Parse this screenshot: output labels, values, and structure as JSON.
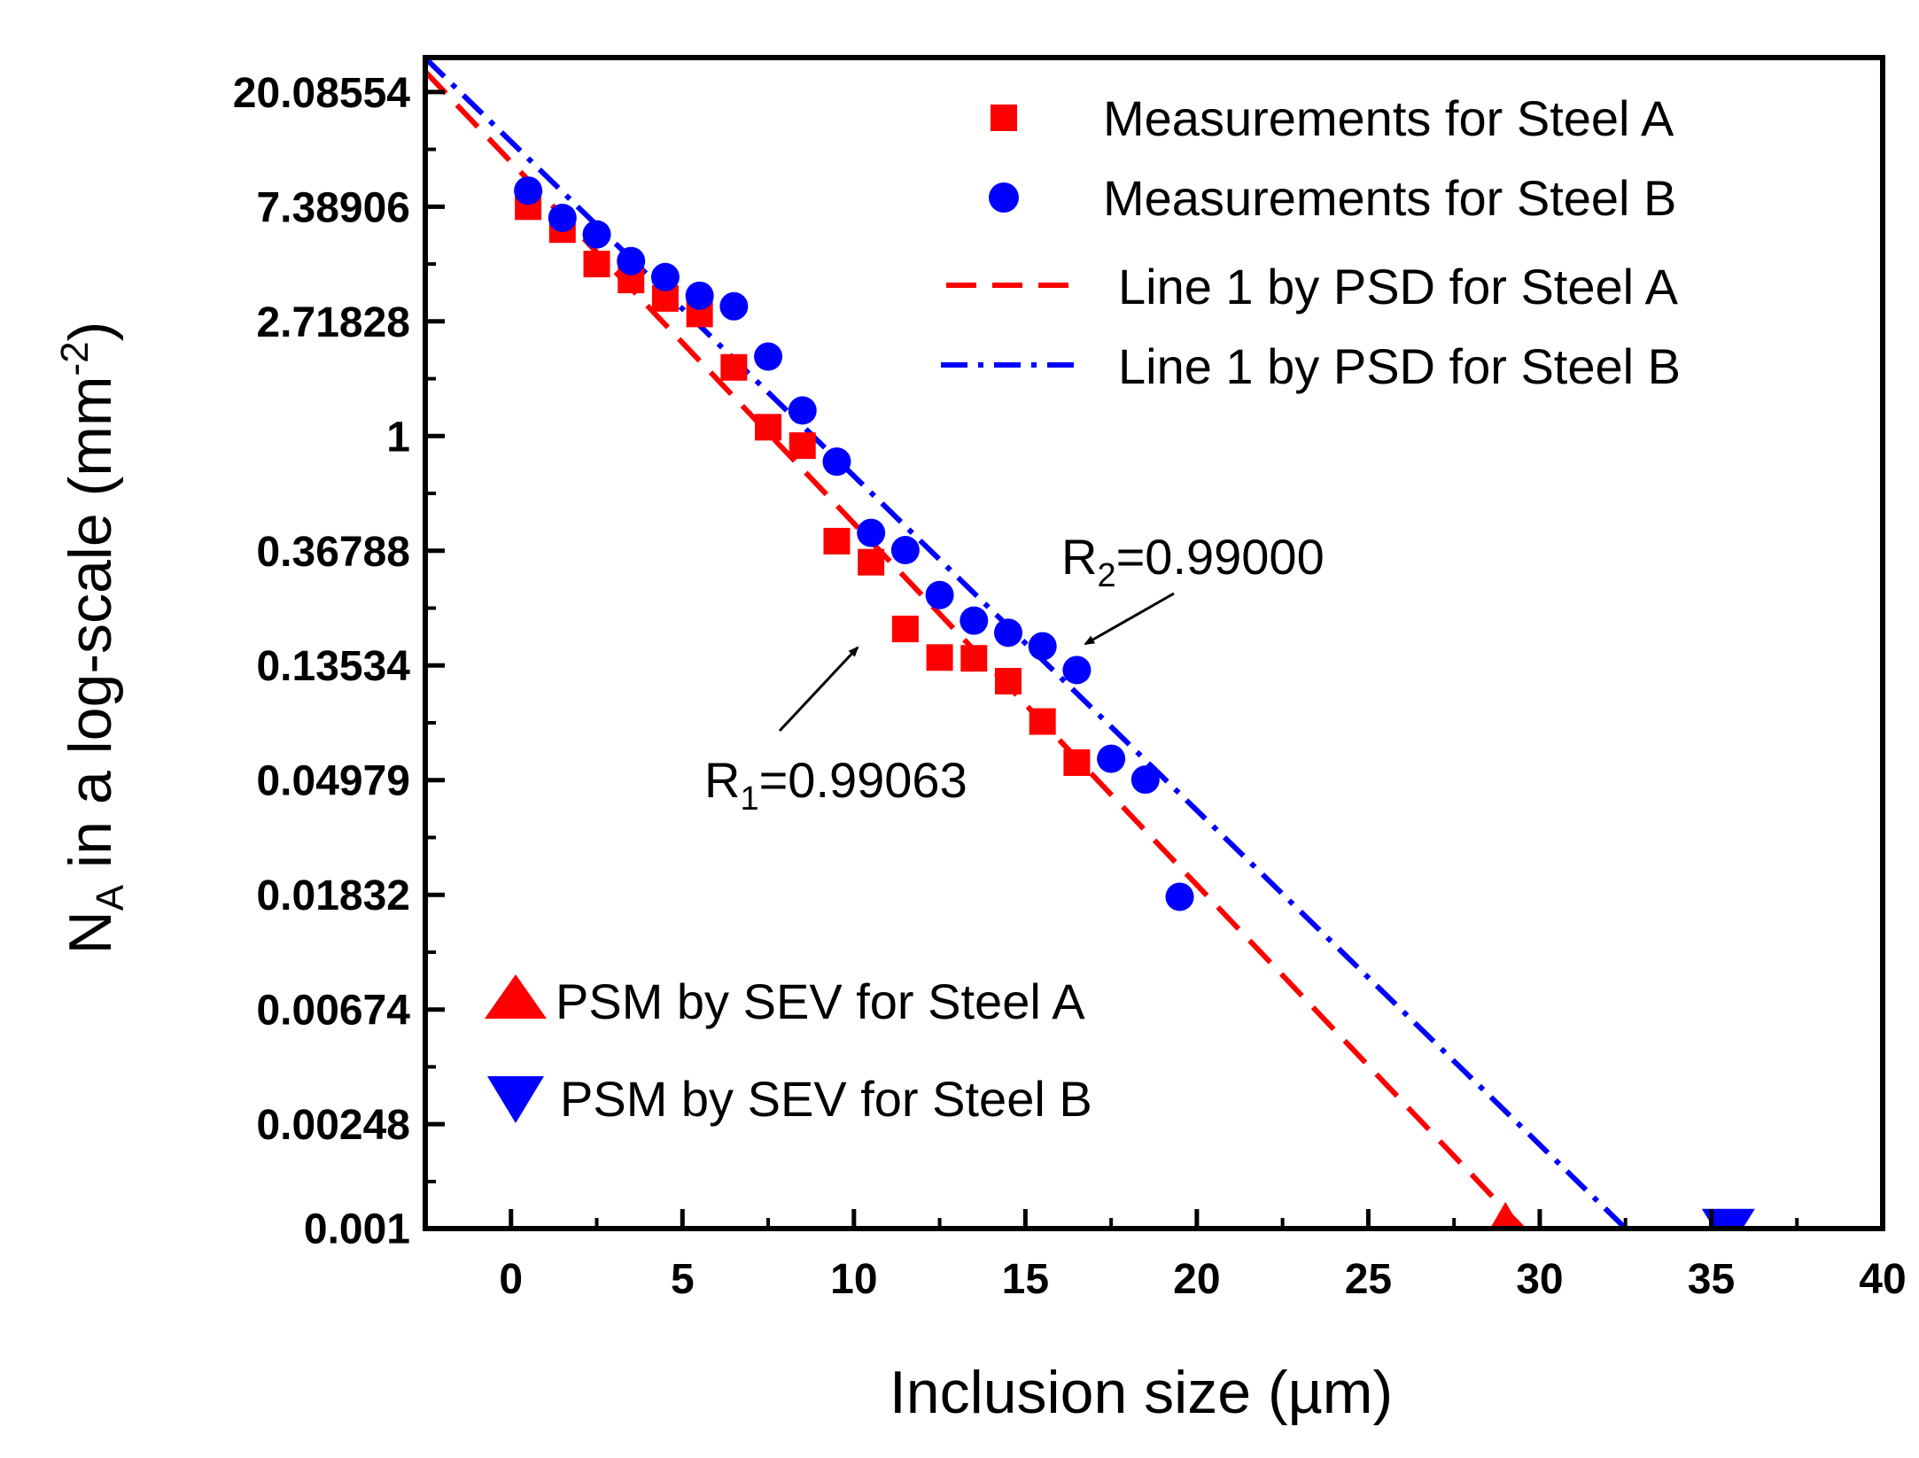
{
  "chart_data": {
    "type": "scatter",
    "title": "",
    "xlabel": "Inclusion size (µm)",
    "ylabel_main": "N",
    "ylabel_sub": "A",
    "ylabel_mid": " in a log-scale (mm",
    "ylabel_sup": "-2",
    "ylabel_end": ")",
    "xlim": [
      -2.5,
      40
    ],
    "ylim_ln": [
      -6.91,
      3.3
    ],
    "x_ticks": [
      0,
      5,
      10,
      15,
      20,
      25,
      30,
      35,
      40
    ],
    "y_ticks": [
      {
        "label": "20.08554",
        "ln": 3
      },
      {
        "label": "7.38906",
        "ln": 2
      },
      {
        "label": "2.71828",
        "ln": 1
      },
      {
        "label": "1",
        "ln": 0
      },
      {
        "label": "0.36788",
        "ln": -1
      },
      {
        "label": "0.13534",
        "ln": -2
      },
      {
        "label": "0.04979",
        "ln": -3
      },
      {
        "label": "0.01832",
        "ln": -4
      },
      {
        "label": "0.00674",
        "ln": -5
      },
      {
        "label": "0.00248",
        "ln": -6
      },
      {
        "label": "0.001",
        "ln": -6.908
      }
    ],
    "series": [
      {
        "name": "Measurements for Steel A",
        "kind": "markers",
        "marker": "square",
        "color": "#ff0000",
        "x": [
          0.5,
          1.5,
          2.5,
          3.5,
          4.5,
          5.5,
          6.5,
          7.5,
          8.5,
          9.5,
          10.5,
          11.5,
          12.5,
          13.5,
          14.5,
          15.5,
          16.5
        ],
        "y": [
          7.39,
          6.05,
          4.48,
          3.9,
          3.32,
          2.9,
          1.82,
          1.08,
          0.92,
          0.4,
          0.333,
          0.186,
          0.145,
          0.144,
          0.118,
          0.083,
          0.058
        ]
      },
      {
        "name": "Measurements for Steel B",
        "kind": "markers",
        "marker": "circle",
        "color": "#0000ff",
        "x": [
          0.5,
          1.5,
          2.5,
          3.5,
          4.5,
          5.5,
          6.5,
          7.5,
          8.5,
          9.5,
          10.5,
          11.5,
          12.5,
          13.5,
          14.5,
          15.5,
          16.5,
          17.5,
          18.5,
          19.5
        ],
        "y": [
          8.5,
          6.7,
          5.8,
          4.6,
          4.0,
          3.4,
          3.1,
          2.0,
          1.25,
          0.8,
          0.43,
          0.37,
          0.25,
          0.2,
          0.18,
          0.16,
          0.13,
          0.06,
          0.05,
          0.018
        ]
      },
      {
        "name": "Line 1 by PSD for Steel A",
        "kind": "line",
        "dash": "dashed",
        "color": "#ff0000",
        "x": [
          -2.5,
          29.5
        ],
        "y": [
          24.0,
          0.001
        ]
      },
      {
        "name": "Line 1 by PSD for Steel B",
        "kind": "line",
        "dash": "dashdot",
        "color": "#0000ff",
        "x": [
          -2.5,
          32.5
        ],
        "y": [
          27.0,
          0.001
        ]
      },
      {
        "name": "PSM by SEV for Steel A",
        "kind": "markers",
        "marker": "triangle-up",
        "color": "#ff0000",
        "x": [
          29
        ],
        "y": [
          0.001
        ]
      },
      {
        "name": "PSM by SEV for Steel B",
        "kind": "markers",
        "marker": "triangle-down",
        "color": "#0000ff",
        "x": [
          35.5
        ],
        "y": [
          0.001
        ]
      }
    ],
    "annotations": [
      {
        "id": "r1",
        "main": "R",
        "sub": "1",
        "rest": "=0.99063",
        "point_x": 11,
        "point_y": 0.2
      },
      {
        "id": "r2",
        "main": "R",
        "sub": "2",
        "rest": "=0.99000",
        "point_x": 16.8,
        "point_y": 0.14
      }
    ]
  }
}
